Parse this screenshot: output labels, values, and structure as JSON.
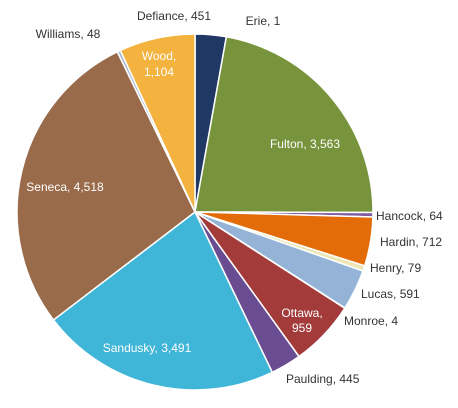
{
  "chart_data": {
    "type": "pie",
    "title": "",
    "slices": [
      {
        "name": "Erie",
        "value": 1,
        "color": "#f79646"
      },
      {
        "name": "Defiance",
        "value": 451,
        "color": "#1f3864"
      },
      {
        "name": "Fulton",
        "value": 3563,
        "color": "#77933c"
      },
      {
        "name": "Hancock",
        "value": 64,
        "color": "#7f5ba3"
      },
      {
        "name": "Hardin",
        "value": 712,
        "color": "#e36c09"
      },
      {
        "name": "Henry",
        "value": 79,
        "color": "#ece6b5"
      },
      {
        "name": "Lucas",
        "value": 591,
        "color": "#95b3d7"
      },
      {
        "name": "Monroe",
        "value": 4,
        "color": "#7f3f98"
      },
      {
        "name": "Ottawa",
        "value": 959,
        "color": "#a23b3a"
      },
      {
        "name": "Paulding",
        "value": 445,
        "color": "#6a4c93"
      },
      {
        "name": "Sandusky",
        "value": 3491,
        "color": "#3fb5d8"
      },
      {
        "name": "Seneca",
        "value": 4518,
        "color": "#996b4a"
      },
      {
        "name": "Williams",
        "value": 48,
        "color": "#a6b9cf"
      },
      {
        "name": "Wood",
        "value": 1104,
        "color": "#f4b23e"
      }
    ],
    "labels": [
      {
        "text": "Erie, 1"
      },
      {
        "text": "Defiance, 451"
      },
      {
        "text": "Fulton, 3,563"
      },
      {
        "text": "Hancock, 64"
      },
      {
        "text": "Hardin, 712"
      },
      {
        "text": "Henry, 79"
      },
      {
        "text": "Lucas, 591"
      },
      {
        "text": "Monroe, 4"
      },
      {
        "text": "Ottawa,",
        "text2": "959"
      },
      {
        "text": "Paulding, 445"
      },
      {
        "text": "Sandusky, 3,491"
      },
      {
        "text": "Seneca, 4,518"
      },
      {
        "text": "Williams, 48"
      },
      {
        "text": "Wood,",
        "text2": "1,104"
      }
    ],
    "legend": "none"
  }
}
